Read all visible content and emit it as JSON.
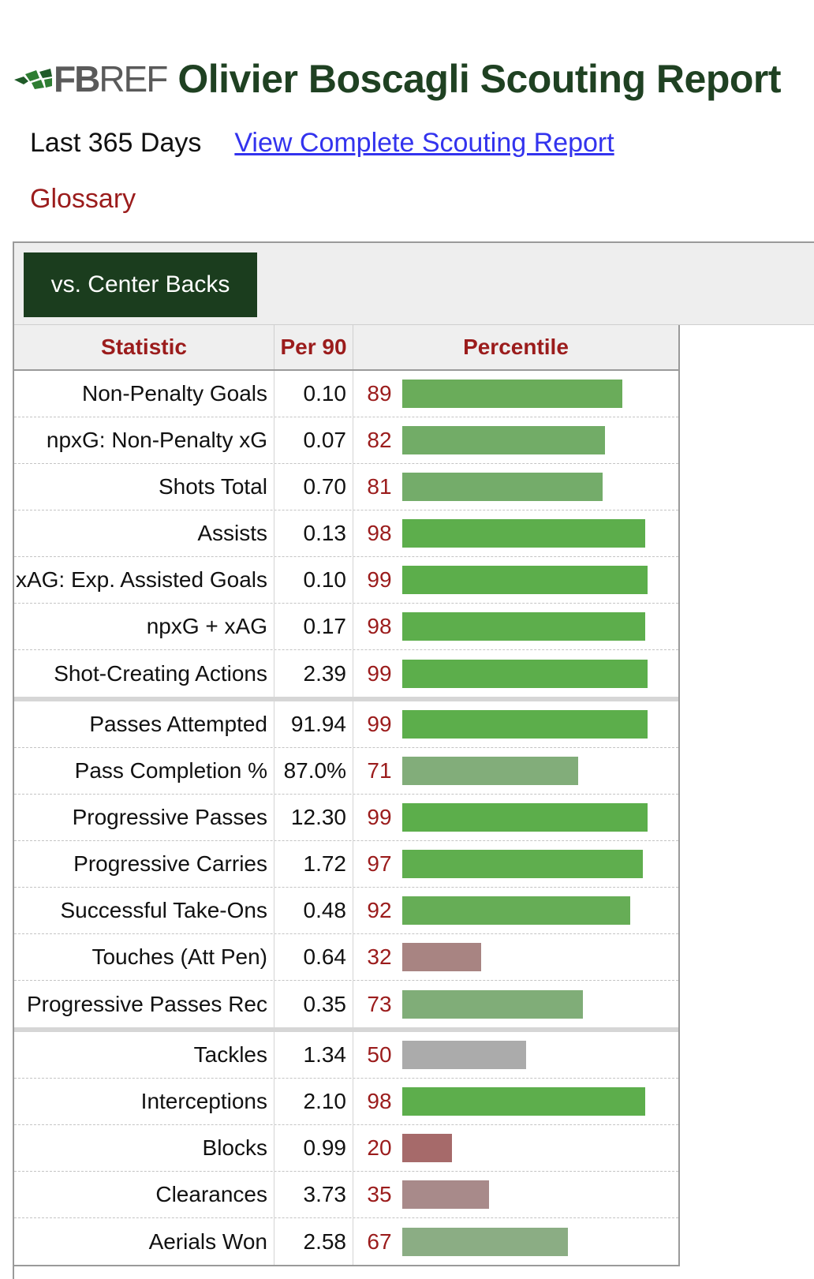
{
  "header": {
    "logo_text_bold": "FB",
    "logo_text_thin": "REF",
    "title": "Olivier Boscagli Scouting Report"
  },
  "period": "Last 365 Days",
  "full_report_link": "View Complete Scouting Report",
  "glossary_link": "Glossary",
  "tab": {
    "label": "vs. Center Backs"
  },
  "table": {
    "columns": [
      "Statistic",
      "Per 90",
      "Percentile"
    ],
    "groups": [
      [
        {
          "stat": "Non-Penalty Goals",
          "per90": "0.10",
          "percentile": 89,
          "color": "#6aac5a"
        },
        {
          "stat": "npxG: Non-Penalty xG",
          "per90": "0.07",
          "percentile": 82,
          "color": "#72ac67"
        },
        {
          "stat": "Shots Total",
          "per90": "0.70",
          "percentile": 81,
          "color": "#74ac6a"
        },
        {
          "stat": "Assists",
          "per90": "0.13",
          "percentile": 98,
          "color": "#5dae4c"
        },
        {
          "stat": "xAG: Exp. Assisted Goals",
          "per90": "0.10",
          "percentile": 99,
          "color": "#5cae4b"
        },
        {
          "stat": "npxG + xAG",
          "per90": "0.17",
          "percentile": 98,
          "color": "#5dae4c"
        },
        {
          "stat": "Shot-Creating Actions",
          "per90": "2.39",
          "percentile": 99,
          "color": "#5cae4b"
        }
      ],
      [
        {
          "stat": "Passes Attempted",
          "per90": "91.94",
          "percentile": 99,
          "color": "#5cae4b"
        },
        {
          "stat": "Pass Completion %",
          "per90": "87.0%",
          "percentile": 71,
          "color": "#82ad7a"
        },
        {
          "stat": "Progressive Passes",
          "per90": "12.30",
          "percentile": 99,
          "color": "#5cae4b"
        },
        {
          "stat": "Progressive Carries",
          "per90": "1.72",
          "percentile": 97,
          "color": "#5fae4e"
        },
        {
          "stat": "Successful Take-Ons",
          "per90": "0.48",
          "percentile": 92,
          "color": "#66ad56"
        },
        {
          "stat": "Touches (Att Pen)",
          "per90": "0.64",
          "percentile": 32,
          "color": "#a88482"
        },
        {
          "stat": "Progressive Passes Rec",
          "per90": "0.35",
          "percentile": 73,
          "color": "#80ad78"
        }
      ],
      [
        {
          "stat": "Tackles",
          "per90": "1.34",
          "percentile": 50,
          "color": "#ababab"
        },
        {
          "stat": "Interceptions",
          "per90": "2.10",
          "percentile": 98,
          "color": "#5dae4c"
        },
        {
          "stat": "Blocks",
          "per90": "0.99",
          "percentile": 20,
          "color": "#a66a6a"
        },
        {
          "stat": "Clearances",
          "per90": "3.73",
          "percentile": 35,
          "color": "#a88a8a"
        },
        {
          "stat": "Aerials Won",
          "per90": "2.58",
          "percentile": 67,
          "color": "#8bad84"
        }
      ]
    ]
  }
}
